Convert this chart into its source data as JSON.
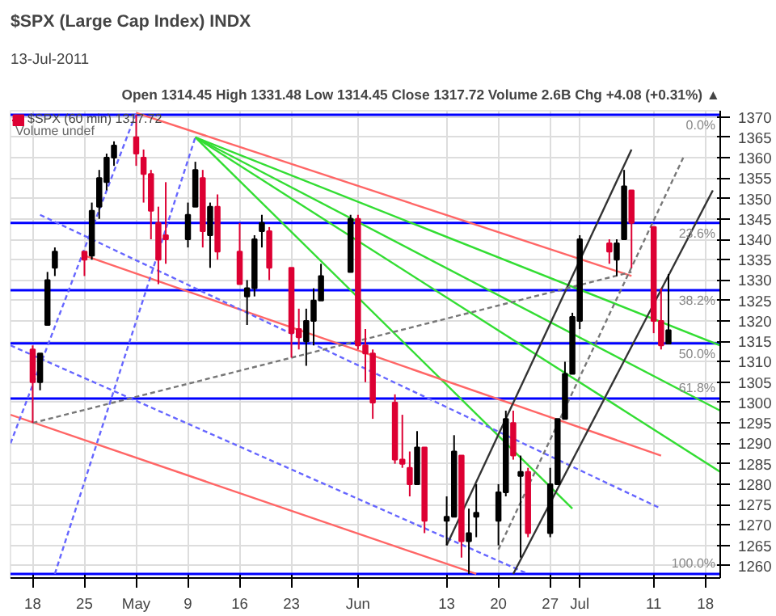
{
  "chart_data": {
    "type": "candlestick",
    "title": "$SPX (Large Cap Index) INDX",
    "subtitle": "13-Jul-2011",
    "annotations": [
      "Open 1314.45 High 1331.48 Low 1314.45 Close 1317.72 Volume 2.6B Chg +4.08 (+0.31%) ▲",
      "Volume undef",
      "0.0%",
      "23.6%",
      "38.2%",
      "50.0%",
      "61.8%",
      "100.0%"
    ],
    "xlim": [
      "2011-04-15",
      "2011-07-20"
    ],
    "xticks": [
      {
        "value": "2011-04-18",
        "label": "18"
      },
      {
        "value": "2011-04-25",
        "label": "25"
      },
      {
        "value": "2011-05-02",
        "label": "May"
      },
      {
        "value": "2011-05-09",
        "label": "9"
      },
      {
        "value": "2011-05-16",
        "label": "16"
      },
      {
        "value": "2011-05-23",
        "label": "23"
      },
      {
        "value": "2011-06-01",
        "label": "Jun"
      },
      {
        "value": "2011-06-13",
        "label": "13"
      },
      {
        "value": "2011-06-20",
        "label": "20"
      },
      {
        "value": "2011-06-27",
        "label": "27"
      },
      {
        "value": "2011-07-01",
        "label": "Jul"
      },
      {
        "value": "2011-07-11",
        "label": "11"
      },
      {
        "value": "2011-07-18",
        "label": "18"
      }
    ],
    "ylim": [
      1257,
      1371.5
    ],
    "yticks": [
      1260,
      1265,
      1270,
      1275,
      1280,
      1285,
      1290,
      1295,
      1300,
      1305,
      1310,
      1315,
      1320,
      1325,
      1330,
      1335,
      1340,
      1345,
      1350,
      1355,
      1360,
      1365,
      1370
    ],
    "grid": true,
    "legend": "top left",
    "ref_lines": [
      {
        "axis": "y",
        "value": 1370.5,
        "color": "#0000ff"
      },
      {
        "axis": "y",
        "value": 1344,
        "color": "#0000ff"
      },
      {
        "axis": "y",
        "value": 1327.5,
        "color": "#0000ff"
      },
      {
        "axis": "y",
        "value": 1314.5,
        "color": "#0000ff"
      },
      {
        "axis": "y",
        "value": 1301,
        "color": "#0000ff"
      },
      {
        "axis": "y",
        "value": 1258,
        "color": "#0000ff"
      }
    ],
    "series": [
      {
        "name": "$SPX (60 min) 1317.72",
        "x": [
          "2011-04-18",
          "2011-04-19",
          "2011-04-20",
          "2011-04-21",
          "2011-04-25",
          "2011-04-26",
          "2011-04-27",
          "2011-04-28",
          "2011-04-29",
          "2011-05-02",
          "2011-05-03",
          "2011-05-04",
          "2011-05-05",
          "2011-05-06",
          "2011-05-09",
          "2011-05-10",
          "2011-05-11",
          "2011-05-12",
          "2011-05-13",
          "2011-05-16",
          "2011-05-17",
          "2011-05-18",
          "2011-05-19",
          "2011-05-20",
          "2011-05-23",
          "2011-05-24",
          "2011-05-25",
          "2011-05-26",
          "2011-05-27",
          "2011-05-31",
          "2011-06-01",
          "2011-06-02",
          "2011-06-03",
          "2011-06-06",
          "2011-06-07",
          "2011-06-08",
          "2011-06-09",
          "2011-06-10",
          "2011-06-13",
          "2011-06-14",
          "2011-06-15",
          "2011-06-16",
          "2011-06-17",
          "2011-06-20",
          "2011-06-21",
          "2011-06-22",
          "2011-06-23",
          "2011-06-24",
          "2011-06-27",
          "2011-06-28",
          "2011-06-29",
          "2011-06-30",
          "2011-07-01",
          "2011-07-05",
          "2011-07-06",
          "2011-07-07",
          "2011-07-08",
          "2011-07-11",
          "2011-07-12",
          "2011-07-13"
        ],
        "ohlc": [
          [
            1313,
            1314,
            1295,
            1305
          ],
          [
            1305,
            1312,
            1303,
            1312
          ],
          [
            1319,
            1332,
            1319,
            1330
          ],
          [
            1333,
            1338,
            1331,
            1337
          ],
          [
            1337,
            1337,
            1331,
            1335
          ],
          [
            1336,
            1349,
            1335,
            1347
          ],
          [
            1348,
            1357,
            1345,
            1355
          ],
          [
            1354,
            1361,
            1352,
            1360
          ],
          [
            1360,
            1364,
            1358,
            1363
          ],
          [
            1365,
            1370.5,
            1358,
            1361
          ],
          [
            1360,
            1362,
            1349,
            1356
          ],
          [
            1356,
            1357,
            1340,
            1347
          ],
          [
            1344,
            1348,
            1329,
            1335
          ],
          [
            1341,
            1354,
            1334,
            1340
          ],
          [
            1340,
            1349,
            1338,
            1346
          ],
          [
            1348,
            1359,
            1348,
            1357
          ],
          [
            1355,
            1357,
            1338,
            1342
          ],
          [
            1341,
            1349,
            1333,
            1348
          ],
          [
            1348,
            1351,
            1335,
            1337
          ],
          [
            1337,
            1344,
            1329,
            1329
          ],
          [
            1326,
            1330,
            1319,
            1328
          ],
          [
            1328,
            1341,
            1326,
            1340
          ],
          [
            1342,
            1346,
            1338,
            1344
          ],
          [
            1342,
            1343,
            1330,
            1333
          ],
          [
            1333,
            1333,
            1311,
            1317
          ],
          [
            1318,
            1323,
            1313,
            1316
          ],
          [
            1315,
            1323,
            1309,
            1320
          ],
          [
            1320,
            1328,
            1314,
            1325
          ],
          [
            1325,
            1334,
            1325,
            1331
          ],
          [
            1332,
            1346,
            1332,
            1345
          ],
          [
            1345,
            1346,
            1313,
            1314
          ],
          [
            1314,
            1318,
            1305,
            1312
          ],
          [
            1312,
            1313,
            1296,
            1300
          ],
          [
            1300,
            1302,
            1285,
            1286
          ],
          [
            1286,
            1297,
            1284,
            1285
          ],
          [
            1284,
            1288,
            1277,
            1280
          ],
          [
            1280,
            1293,
            1280,
            1289
          ],
          [
            1289,
            1289,
            1268,
            1271
          ],
          [
            1271,
            1277,
            1265,
            1272
          ],
          [
            1272,
            1292,
            1272,
            1288
          ],
          [
            1287,
            1287,
            1262,
            1266
          ],
          [
            1266,
            1274,
            1258,
            1268
          ],
          [
            1272,
            1280,
            1267,
            1273
          ],
          [
            1271,
            1280,
            1265,
            1278
          ],
          [
            1278,
            1298,
            1277,
            1296
          ],
          [
            1295,
            1298,
            1286,
            1287
          ],
          [
            1282,
            1287,
            1262,
            1283
          ],
          [
            1283,
            1284,
            1267,
            1268
          ],
          [
            1268,
            1284,
            1267,
            1280
          ],
          [
            1280,
            1296,
            1280,
            1296
          ],
          [
            1296,
            1310,
            1296,
            1307
          ],
          [
            1307,
            1322,
            1307,
            1321
          ],
          [
            1320,
            1341,
            1318,
            1340
          ],
          [
            1339,
            1340,
            1334,
            1337
          ],
          [
            1335,
            1340,
            1331,
            1339
          ],
          [
            1340,
            1357,
            1340,
            1353
          ],
          [
            1352,
            1352,
            1333,
            1344
          ],
          [
            1343,
            1343,
            1317,
            1320
          ],
          [
            1320,
            1328,
            1313,
            1314
          ],
          [
            1314.45,
            1331.48,
            1314.45,
            1317.72
          ]
        ],
        "colors": [
          "#dd0033",
          "#000000",
          "#000000",
          "#000000",
          "#dd0033",
          "#000000",
          "#000000",
          "#000000",
          "#000000",
          "#dd0033",
          "#dd0033",
          "#dd0033",
          "#dd0033",
          "#dd0033",
          "#000000",
          "#000000",
          "#dd0033",
          "#000000",
          "#dd0033",
          "#dd0033",
          "#000000",
          "#000000",
          "#000000",
          "#dd0033",
          "#dd0033",
          "#dd0033",
          "#000000",
          "#000000",
          "#000000",
          "#000000",
          "#dd0033",
          "#dd0033",
          "#dd0033",
          "#dd0033",
          "#dd0033",
          "#dd0033",
          "#000000",
          "#dd0033",
          "#000000",
          "#000000",
          "#dd0033",
          "#000000",
          "#000000",
          "#000000",
          "#000000",
          "#dd0033",
          "#000000",
          "#dd0033",
          "#000000",
          "#000000",
          "#000000",
          "#000000",
          "#000000",
          "#dd0033",
          "#000000",
          "#000000",
          "#dd0033",
          "#dd0033",
          "#dd0033",
          "#000000"
        ]
      },
      {
        "type": "line",
        "color": "#33dd33",
        "line_style": "solid",
        "x": [
          "2011-05-10",
          "2011-07-20"
        ],
        "values": [
          1365,
          1314
        ]
      },
      {
        "type": "line",
        "color": "#33dd33",
        "line_style": "solid",
        "x": [
          "2011-05-10",
          "2011-07-20"
        ],
        "values": [
          1365,
          1298
        ]
      },
      {
        "type": "line",
        "color": "#33dd33",
        "line_style": "solid",
        "x": [
          "2011-05-10",
          "2011-07-20"
        ],
        "values": [
          1365,
          1283
        ]
      },
      {
        "type": "line",
        "color": "#33dd33",
        "line_style": "solid",
        "x": [
          "2011-05-10",
          "2011-06-30"
        ],
        "values": [
          1365,
          1274
        ]
      },
      {
        "type": "line",
        "color": "#ff6666",
        "line_style": "solid",
        "x": [
          "2011-05-02",
          "2011-07-08"
        ],
        "values": [
          1371,
          1331
        ]
      },
      {
        "type": "line",
        "color": "#ff6666",
        "line_style": "solid",
        "x": [
          "2011-04-25",
          "2011-07-12"
        ],
        "values": [
          1336,
          1287
        ]
      },
      {
        "type": "line",
        "color": "#ff6666",
        "line_style": "solid",
        "x": [
          "2011-04-15",
          "2011-06-17"
        ],
        "values": [
          1297,
          1258
        ]
      },
      {
        "type": "line",
        "color": "#6666ff",
        "line_style": "dashed",
        "x": [
          "2011-04-19",
          "2011-07-12"
        ],
        "values": [
          1346,
          1274
        ]
      },
      {
        "type": "line",
        "color": "#6666ff",
        "line_style": "dashed",
        "x": [
          "2011-04-15",
          "2011-06-24"
        ],
        "values": [
          1314,
          1258
        ]
      },
      {
        "type": "line",
        "color": "#6666ff",
        "line_style": "dashed",
        "x": [
          "2011-04-15",
          "2011-05-02"
        ],
        "values": [
          1290,
          1371
        ]
      },
      {
        "type": "line",
        "color": "#6666ff",
        "line_style": "dashed",
        "x": [
          "2011-04-21",
          "2011-05-10"
        ],
        "values": [
          1258,
          1365
        ]
      },
      {
        "type": "line",
        "color": "#333333",
        "line_style": "solid",
        "x": [
          "2011-06-13",
          "2011-07-08"
        ],
        "values": [
          1265,
          1362
        ]
      },
      {
        "type": "line",
        "color": "#333333",
        "line_style": "solid",
        "x": [
          "2011-06-22",
          "2011-07-19"
        ],
        "values": [
          1258,
          1352
        ]
      },
      {
        "type": "line",
        "color": "#777777",
        "line_style": "dashed",
        "x": [
          "2011-04-18",
          "2011-07-08"
        ],
        "values": [
          1295,
          1332
        ]
      },
      {
        "type": "line",
        "color": "#777777",
        "line_style": "dashed",
        "x": [
          "2011-06-20",
          "2011-07-15"
        ],
        "values": [
          1264,
          1360
        ]
      }
    ]
  }
}
